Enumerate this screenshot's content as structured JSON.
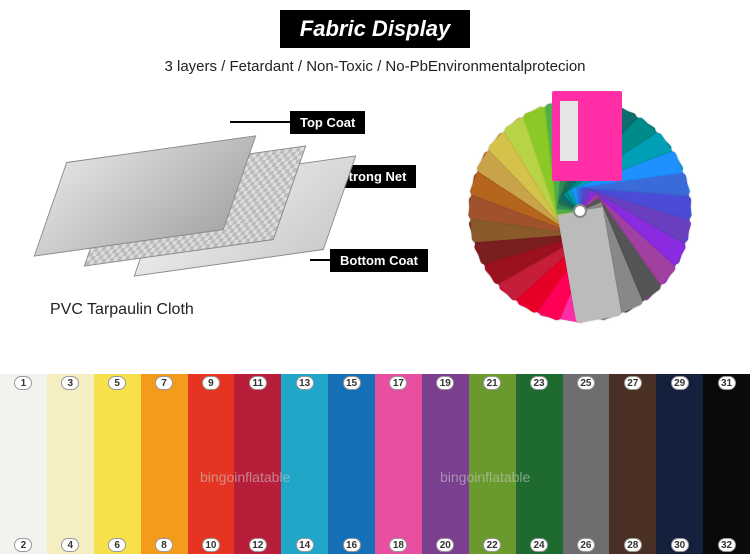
{
  "header": {
    "title": "Fabric Display",
    "subtitle": "3 layers / Fetardant / Non-Toxic / No-PbEnvironmentalprotecion"
  },
  "diagram": {
    "layers": [
      {
        "label": "Top Coat"
      },
      {
        "label": "Strong Net"
      },
      {
        "label": "Bottom Coat"
      }
    ],
    "caption": "PVC Tarpaulin Cloth"
  },
  "fan": {
    "colors": [
      "#ff2ea6",
      "#ff0055",
      "#e60026",
      "#c41e3a",
      "#9b111e",
      "#7a1f1f",
      "#8a5a2b",
      "#a0522d",
      "#b5651d",
      "#c8a34a",
      "#d4c24a",
      "#b8d446",
      "#8ac926",
      "#4caf50",
      "#2e8b57",
      "#1f6f54",
      "#0b6e6e",
      "#008b8b",
      "#009fb7",
      "#1e90ff",
      "#3a6bd8",
      "#4b4bd8",
      "#6a3fbf",
      "#8a2be2",
      "#a040a0",
      "#555555",
      "#888888",
      "#bbbbbb"
    ]
  },
  "swatches": {
    "watermark": "bingoinflatable",
    "items": [
      {
        "odd": 1,
        "even": 2,
        "color": "#f2f2ef"
      },
      {
        "odd": 3,
        "even": 4,
        "color": "#f4eec2"
      },
      {
        "odd": 5,
        "even": 6,
        "color": "#f7e04b"
      },
      {
        "odd": 7,
        "even": 8,
        "color": "#f59b1c"
      },
      {
        "odd": 9,
        "even": 10,
        "color": "#e53522"
      },
      {
        "odd": 11,
        "even": 12,
        "color": "#b81e3a"
      },
      {
        "odd": 13,
        "even": 14,
        "color": "#1fa6c9"
      },
      {
        "odd": 15,
        "even": 16,
        "color": "#1670b8"
      },
      {
        "odd": 17,
        "even": 18,
        "color": "#e94fa1"
      },
      {
        "odd": 19,
        "even": 20,
        "color": "#7a3f8f"
      },
      {
        "odd": 21,
        "even": 22,
        "color": "#6a9a2d"
      },
      {
        "odd": 23,
        "even": 24,
        "color": "#1f6b2f"
      },
      {
        "odd": 25,
        "even": 26,
        "color": "#6e6e6e"
      },
      {
        "odd": 27,
        "even": 28,
        "color": "#4a2f24"
      },
      {
        "odd": 29,
        "even": 30,
        "color": "#14213d"
      },
      {
        "odd": 31,
        "even": 32,
        "color": "#0a0a0a"
      }
    ]
  }
}
